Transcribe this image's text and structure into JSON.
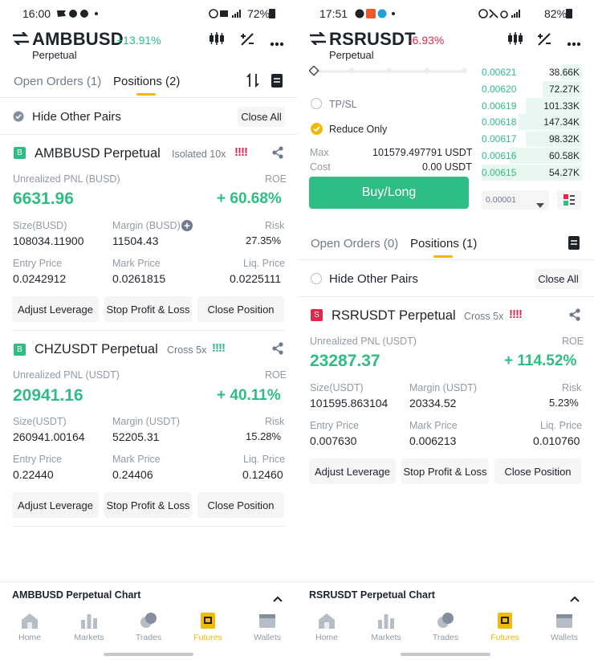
{
  "left": {
    "status": {
      "time": "16:00",
      "battery": "72%"
    },
    "header": {
      "symbol": "AMBBUSD",
      "change": "+13.91%",
      "sub": "Perpetual"
    },
    "tabs": {
      "open_orders": "Open Orders (1)",
      "positions": "Positions (2)"
    },
    "hide_pairs": "Hide Other Pairs",
    "close_all": "Close All",
    "positions": [
      {
        "side": "B",
        "title": "AMBBUSD Perpetual",
        "mode": "Isolated 10x",
        "bars": "!!!!",
        "pnl_label": "Unrealized PNL (BUSD)",
        "pnl": "6631.96",
        "roe_label": "ROE",
        "roe": "+ 60.68%",
        "size_label": "Size(BUSD)",
        "size": "108034.11900",
        "margin_label": "Margin (BUSD)",
        "margin": "11504.43",
        "risk_label": "Risk",
        "risk": "27.35%",
        "entry_label": "Entry Price",
        "entry": "0.0242912",
        "mark_label": "Mark Price",
        "mark": "0.0261815",
        "liq_label": "Liq. Price",
        "liq": "0.0225111",
        "btn_leverage": "Adjust Leverage",
        "btn_tpsl": "Stop Profit & Loss",
        "btn_close": "Close Position"
      },
      {
        "side": "B",
        "title": "CHZUSDT Perpetual",
        "mode": "Cross 5x",
        "bars": "!!!!",
        "pnl_label": "Unrealized PNL (USDT)",
        "pnl": "20941.16",
        "roe_label": "ROE",
        "roe": "+ 40.11%",
        "size_label": "Size(USDT)",
        "size": "260941.00164",
        "margin_label": "Margin (USDT)",
        "margin": "52205.31",
        "risk_label": "Risk",
        "risk": "15.28%",
        "entry_label": "Entry Price",
        "entry": "0.22440",
        "mark_label": "Mark Price",
        "mark": "0.24406",
        "liq_label": "Liq. Price",
        "liq": "0.12460",
        "btn_leverage": "Adjust Leverage",
        "btn_tpsl": "Stop Profit & Loss",
        "btn_close": "Close Position"
      }
    ],
    "chart_bar": "AMBBUSD Perpetual  Chart"
  },
  "right": {
    "status": {
      "time": "17:51",
      "battery": "82%"
    },
    "header": {
      "symbol": "RSRUSDT",
      "change": "-6.93%",
      "sub": "Perpetual"
    },
    "tpsl": "TP/SL",
    "reduce_only": "Reduce Only",
    "max_label": "Max",
    "max_value": "101579.497791 USDT",
    "cost_label": "Cost",
    "cost_value": "0.00 USDT",
    "buy_button": "Buy/Long",
    "orderbook": [
      {
        "price": "0.00621",
        "qty": "38.66K",
        "depth": 0.2
      },
      {
        "price": "0.00620",
        "qty": "72.27K",
        "depth": 0.38
      },
      {
        "price": "0.00619",
        "qty": "101.33K",
        "depth": 0.55
      },
      {
        "price": "0.00618",
        "qty": "147.34K",
        "depth": 0.62
      },
      {
        "price": "0.00617",
        "qty": "98.32K",
        "depth": 0.55
      },
      {
        "price": "0.00616",
        "qty": "60.58K",
        "depth": 0.7
      },
      {
        "price": "0.00615",
        "qty": "54.27K",
        "depth": 0.98
      }
    ],
    "precision": "0.00001",
    "tabs": {
      "open_orders": "Open Orders (0)",
      "positions": "Positions (1)"
    },
    "hide_pairs": "Hide Other Pairs",
    "close_all": "Close All",
    "position": {
      "side": "S",
      "title": "RSRUSDT Perpetual",
      "mode": "Cross 5x",
      "bars": "!!!!",
      "pnl_label": "Unrealized PNL (USDT)",
      "pnl": "23287.37",
      "roe_label": "ROE",
      "roe": "+ 114.52%",
      "size_label": "Size(USDT)",
      "size": "101595.863104",
      "margin_label": "Margin (USDT)",
      "margin": "20334.52",
      "risk_label": "Risk",
      "risk": "5.23%",
      "entry_label": "Entry Price",
      "entry": "0.007630",
      "mark_label": "Mark Price",
      "mark": "0.006213",
      "liq_label": "Liq. Price",
      "liq": "0.010760",
      "btn_leverage": "Adjust Leverage",
      "btn_tpsl": "Stop Profit & Loss",
      "btn_close": "Close Position"
    },
    "chart_bar": "RSRUSDT Perpetual  Chart"
  },
  "nav": {
    "home": "Home",
    "markets": "Markets",
    "trades": "Trades",
    "futures": "Futures",
    "wallets": "Wallets"
  },
  "colors": {
    "green": "#2ebd85",
    "red": "#e0294a",
    "accent": "#f0b90b",
    "buy_button": "#2ebd85"
  }
}
